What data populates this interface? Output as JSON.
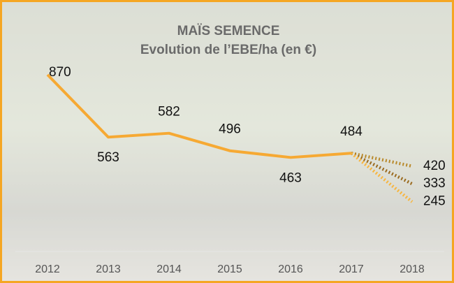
{
  "chart_data": {
    "type": "line",
    "title": "MAÏS SEMENCE",
    "subtitle": "Evolution de l’EBE/ha (en €)",
    "categories": [
      "2012",
      "2013",
      "2014",
      "2015",
      "2016",
      "2017",
      "2018"
    ],
    "ylim": [
      0,
      1100
    ],
    "series": [
      {
        "color": "#f6a933",
        "style": "solid",
        "values": [
          870,
          563,
          582,
          496,
          463,
          484,
          null
        ]
      },
      {
        "color": "#b98a2c",
        "style": "dotted",
        "values": [
          null,
          null,
          null,
          null,
          null,
          484,
          420
        ]
      },
      {
        "color": "#9a6a1e",
        "style": "dotted",
        "values": [
          null,
          null,
          null,
          null,
          null,
          484,
          333
        ]
      },
      {
        "color": "#f7b53f",
        "style": "dotted",
        "values": [
          null,
          null,
          null,
          null,
          null,
          484,
          245
        ]
      }
    ]
  }
}
